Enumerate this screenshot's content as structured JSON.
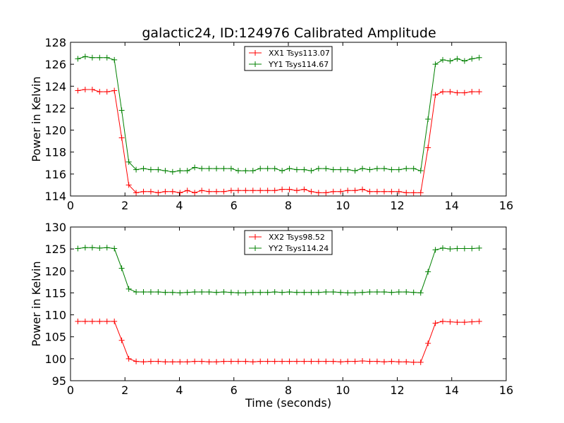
{
  "figure": {
    "title": "galactic24, ID:124976 Calibrated Amplitude"
  },
  "chart_data": [
    {
      "type": "line",
      "title": "galactic24, ID:124976 Calibrated Amplitude",
      "xlabel": "",
      "ylabel": "Power in Kelvin",
      "xlim": [
        0,
        16
      ],
      "ylim": [
        114,
        128
      ],
      "xticks": [
        0,
        2,
        4,
        6,
        8,
        10,
        12,
        14,
        16
      ],
      "yticks": [
        114,
        116,
        118,
        120,
        122,
        124,
        126,
        128
      ],
      "legend_position": "top-center",
      "grid": false,
      "x": [
        0.27,
        0.54,
        0.8,
        1.07,
        1.34,
        1.61,
        1.88,
        2.14,
        2.41,
        2.68,
        2.95,
        3.22,
        3.48,
        3.75,
        4.02,
        4.29,
        4.56,
        4.82,
        5.09,
        5.36,
        5.63,
        5.9,
        6.16,
        6.43,
        6.7,
        6.97,
        7.24,
        7.5,
        7.77,
        8.04,
        8.31,
        8.58,
        8.84,
        9.11,
        9.38,
        9.65,
        9.92,
        10.18,
        10.45,
        10.72,
        10.99,
        11.26,
        11.52,
        11.79,
        12.06,
        12.33,
        12.6,
        12.86,
        13.13,
        13.4,
        13.67,
        13.94,
        14.2,
        14.47,
        14.74,
        15.01
      ],
      "series": [
        {
          "name": "XX1 Tsys113.07",
          "color": "#ff0000",
          "values": [
            123.6,
            123.7,
            123.7,
            123.5,
            123.5,
            123.6,
            119.3,
            115.0,
            114.3,
            114.4,
            114.4,
            114.3,
            114.4,
            114.4,
            114.3,
            114.5,
            114.3,
            114.5,
            114.4,
            114.4,
            114.4,
            114.5,
            114.5,
            114.5,
            114.5,
            114.5,
            114.5,
            114.5,
            114.6,
            114.6,
            114.5,
            114.6,
            114.4,
            114.3,
            114.3,
            114.4,
            114.4,
            114.5,
            114.5,
            114.6,
            114.4,
            114.4,
            114.4,
            114.4,
            114.4,
            114.3,
            114.3,
            114.3,
            118.4,
            123.2,
            123.5,
            123.5,
            123.4,
            123.4,
            123.5,
            123.5
          ]
        },
        {
          "name": "YY1 Tsys114.67",
          "color": "#008000",
          "values": [
            126.5,
            126.7,
            126.6,
            126.6,
            126.6,
            126.4,
            121.8,
            117.1,
            116.4,
            116.5,
            116.4,
            116.4,
            116.3,
            116.2,
            116.3,
            116.3,
            116.6,
            116.5,
            116.5,
            116.5,
            116.5,
            116.5,
            116.3,
            116.3,
            116.3,
            116.5,
            116.5,
            116.5,
            116.3,
            116.5,
            116.4,
            116.4,
            116.3,
            116.5,
            116.5,
            116.4,
            116.4,
            116.4,
            116.3,
            116.5,
            116.4,
            116.5,
            116.5,
            116.4,
            116.4,
            116.5,
            116.5,
            116.3,
            121.0,
            126.0,
            126.4,
            126.3,
            126.5,
            126.3,
            126.5,
            126.6
          ]
        }
      ]
    },
    {
      "type": "line",
      "title": "",
      "xlabel": "Time (seconds)",
      "ylabel": "Power in Kelvin",
      "xlim": [
        0,
        16
      ],
      "ylim": [
        95,
        130
      ],
      "xticks": [
        0,
        2,
        4,
        6,
        8,
        10,
        12,
        14,
        16
      ],
      "yticks": [
        95,
        100,
        105,
        110,
        115,
        120,
        125,
        130
      ],
      "legend_position": "top-center",
      "grid": false,
      "x": [
        0.27,
        0.54,
        0.8,
        1.07,
        1.34,
        1.61,
        1.88,
        2.14,
        2.41,
        2.68,
        2.95,
        3.22,
        3.48,
        3.75,
        4.02,
        4.29,
        4.56,
        4.82,
        5.09,
        5.36,
        5.63,
        5.9,
        6.16,
        6.43,
        6.7,
        6.97,
        7.24,
        7.5,
        7.77,
        8.04,
        8.31,
        8.58,
        8.84,
        9.11,
        9.38,
        9.65,
        9.92,
        10.18,
        10.45,
        10.72,
        10.99,
        11.26,
        11.52,
        11.79,
        12.06,
        12.33,
        12.6,
        12.86,
        13.13,
        13.4,
        13.67,
        13.94,
        14.2,
        14.47,
        14.74,
        15.01
      ],
      "series": [
        {
          "name": "XX2 Tsys98.52",
          "color": "#ff0000",
          "values": [
            108.5,
            108.5,
            108.5,
            108.5,
            108.5,
            108.5,
            104.2,
            100.0,
            99.4,
            99.3,
            99.4,
            99.4,
            99.3,
            99.3,
            99.3,
            99.3,
            99.4,
            99.4,
            99.3,
            99.3,
            99.4,
            99.4,
            99.4,
            99.4,
            99.3,
            99.4,
            99.4,
            99.4,
            99.4,
            99.4,
            99.4,
            99.4,
            99.4,
            99.4,
            99.4,
            99.4,
            99.3,
            99.4,
            99.4,
            99.5,
            99.4,
            99.4,
            99.3,
            99.4,
            99.3,
            99.3,
            99.2,
            99.2,
            103.5,
            108.1,
            108.5,
            108.4,
            108.3,
            108.3,
            108.4,
            108.5
          ]
        },
        {
          "name": "YY2 Tsys114.24",
          "color": "#008000",
          "values": [
            125.1,
            125.3,
            125.3,
            125.2,
            125.3,
            125.1,
            120.6,
            115.9,
            115.2,
            115.2,
            115.2,
            115.2,
            115.1,
            115.1,
            115.0,
            115.1,
            115.2,
            115.2,
            115.2,
            115.1,
            115.2,
            115.1,
            115.0,
            115.0,
            115.1,
            115.1,
            115.1,
            115.2,
            115.1,
            115.2,
            115.1,
            115.1,
            115.1,
            115.1,
            115.2,
            115.2,
            115.1,
            115.0,
            115.0,
            115.1,
            115.2,
            115.2,
            115.2,
            115.1,
            115.2,
            115.2,
            115.1,
            115.0,
            119.8,
            124.8,
            125.2,
            125.0,
            125.1,
            125.1,
            125.1,
            125.2
          ]
        }
      ]
    }
  ]
}
